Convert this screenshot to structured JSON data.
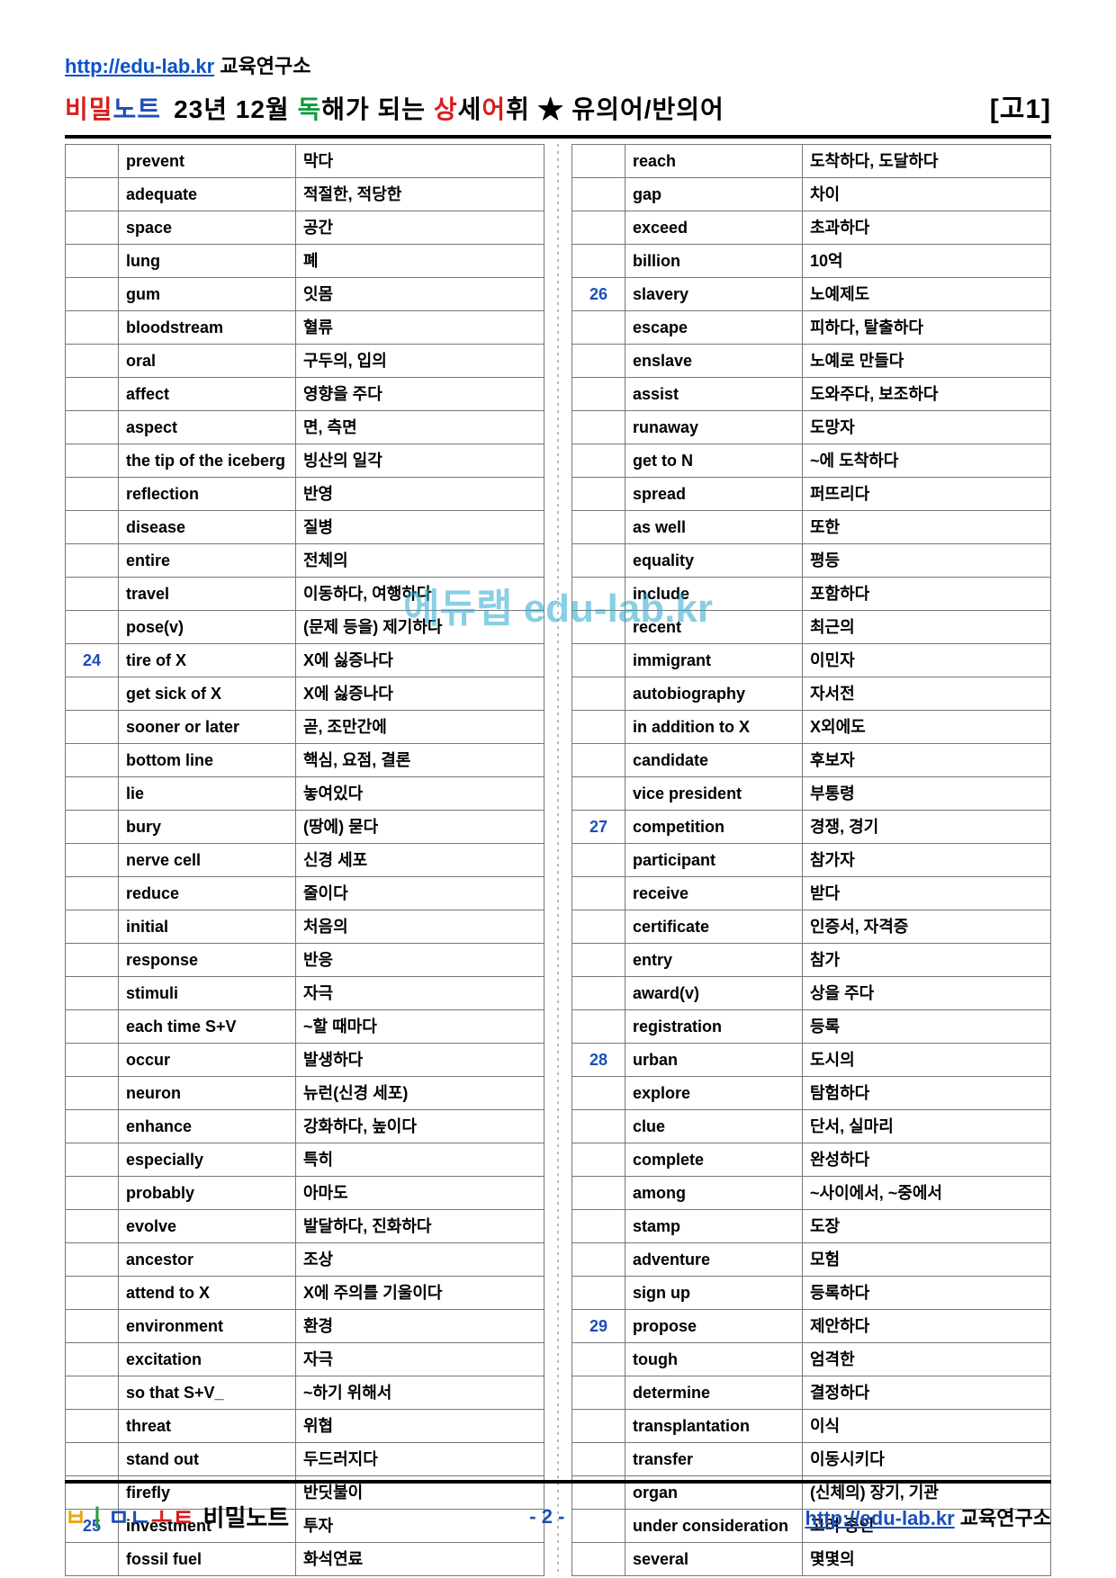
{
  "header": {
    "url": "http://edu-lab.kr",
    "lab": " 교육연구소",
    "logo_chars": [
      "비",
      "밀",
      "노",
      "트"
    ],
    "logo_colors": [
      "#d81e1e",
      "#d81e1e",
      "#1b4eb8",
      "#1b4eb8"
    ],
    "title_parts": [
      {
        "t": "23년  12월 ",
        "c": "#000"
      },
      {
        "t": "독",
        "c": "#0f9b3a"
      },
      {
        "t": "해가  되는  ",
        "c": "#000"
      },
      {
        "t": "상",
        "c": "#d81e1e"
      },
      {
        "t": "세",
        "c": "#000"
      },
      {
        "t": "어",
        "c": "#d81e1e"
      },
      {
        "t": "휘 ★ 유의어/반의어",
        "c": "#000"
      }
    ],
    "grade": "[고1]"
  },
  "watermark": "에듀랩 edu-lab.kr",
  "left": [
    {
      "n": "",
      "en": "prevent",
      "kr": "막다"
    },
    {
      "n": "",
      "en": "adequate",
      "kr": "적절한, 적당한"
    },
    {
      "n": "",
      "en": "space",
      "kr": "공간"
    },
    {
      "n": "",
      "en": "lung",
      "kr": "폐"
    },
    {
      "n": "",
      "en": "gum",
      "kr": "잇몸"
    },
    {
      "n": "",
      "en": "bloodstream",
      "kr": "혈류"
    },
    {
      "n": "",
      "en": "oral",
      "kr": "구두의, 입의"
    },
    {
      "n": "",
      "en": "affect",
      "kr": "영향을 주다"
    },
    {
      "n": "",
      "en": "aspect",
      "kr": "면, 측면"
    },
    {
      "n": "",
      "en": "the tip of the iceberg",
      "kr": "빙산의 일각"
    },
    {
      "n": "",
      "en": "reflection",
      "kr": "반영"
    },
    {
      "n": "",
      "en": "disease",
      "kr": "질병"
    },
    {
      "n": "",
      "en": "entire",
      "kr": "전체의"
    },
    {
      "n": "",
      "en": "travel",
      "kr": "이동하다, 여행하다"
    },
    {
      "n": "",
      "en": "pose(v)",
      "kr": "(문제 등을) 제기하다"
    },
    {
      "n": "24",
      "en": "tire of X",
      "kr": "X에 싫증나다"
    },
    {
      "n": "",
      "en": "get sick of X",
      "kr": "X에 싫증나다"
    },
    {
      "n": "",
      "en": "sooner or later",
      "kr": "곧, 조만간에"
    },
    {
      "n": "",
      "en": "bottom line",
      "kr": "핵심, 요점, 결론"
    },
    {
      "n": "",
      "en": "lie",
      "kr": "놓여있다"
    },
    {
      "n": "",
      "en": "bury",
      "kr": "(땅에) 묻다"
    },
    {
      "n": "",
      "en": "nerve cell",
      "kr": "신경 세포"
    },
    {
      "n": "",
      "en": "reduce",
      "kr": "줄이다"
    },
    {
      "n": "",
      "en": "initial",
      "kr": "처음의"
    },
    {
      "n": "",
      "en": "response",
      "kr": "반응"
    },
    {
      "n": "",
      "en": "stimuli",
      "kr": "자극"
    },
    {
      "n": "",
      "en": "each time S+V",
      "kr": "~할 때마다"
    },
    {
      "n": "",
      "en": "occur",
      "kr": "발생하다"
    },
    {
      "n": "",
      "en": "neuron",
      "kr": "뉴런(신경 세포)"
    },
    {
      "n": "",
      "en": "enhance",
      "kr": "강화하다, 높이다"
    },
    {
      "n": "",
      "en": "especially",
      "kr": "특히"
    },
    {
      "n": "",
      "en": "probably",
      "kr": "아마도"
    },
    {
      "n": "",
      "en": "evolve",
      "kr": "발달하다, 진화하다"
    },
    {
      "n": "",
      "en": "ancestor",
      "kr": "조상"
    },
    {
      "n": "",
      "en": "attend to X",
      "kr": "X에 주의를 기울이다"
    },
    {
      "n": "",
      "en": "environment",
      "kr": "환경"
    },
    {
      "n": "",
      "en": "excitation",
      "kr": "자극"
    },
    {
      "n": "",
      "en": "so that S+V_",
      "kr": "~하기 위해서"
    },
    {
      "n": "",
      "en": "threat",
      "kr": "위협"
    },
    {
      "n": "",
      "en": "stand out",
      "kr": "두드러지다"
    },
    {
      "n": "",
      "en": "firefly",
      "kr": "반딧불이"
    },
    {
      "n": "25",
      "en": "investment",
      "kr": "투자"
    },
    {
      "n": "",
      "en": "fossil fuel",
      "kr": "화석연료"
    }
  ],
  "right": [
    {
      "n": "",
      "en": "reach",
      "kr": "도착하다, 도달하다"
    },
    {
      "n": "",
      "en": "gap",
      "kr": "차이"
    },
    {
      "n": "",
      "en": "exceed",
      "kr": "초과하다"
    },
    {
      "n": "",
      "en": "billion",
      "kr": "10억"
    },
    {
      "n": "26",
      "en": "slavery",
      "kr": "노예제도"
    },
    {
      "n": "",
      "en": "escape",
      "kr": "피하다, 탈출하다"
    },
    {
      "n": "",
      "en": "enslave",
      "kr": "노예로 만들다"
    },
    {
      "n": "",
      "en": "assist",
      "kr": "도와주다, 보조하다"
    },
    {
      "n": "",
      "en": "runaway",
      "kr": "도망자"
    },
    {
      "n": "",
      "en": "get to N",
      "kr": "~에 도착하다"
    },
    {
      "n": "",
      "en": "spread",
      "kr": "퍼뜨리다"
    },
    {
      "n": "",
      "en": "as well",
      "kr": "또한"
    },
    {
      "n": "",
      "en": "equality",
      "kr": "평등"
    },
    {
      "n": "",
      "en": "include",
      "kr": "포함하다"
    },
    {
      "n": "",
      "en": "recent",
      "kr": "최근의"
    },
    {
      "n": "",
      "en": "immigrant",
      "kr": "이민자"
    },
    {
      "n": "",
      "en": "autobiography",
      "kr": "자서전"
    },
    {
      "n": "",
      "en": "in addition to X",
      "kr": "X외에도"
    },
    {
      "n": "",
      "en": "candidate",
      "kr": "후보자"
    },
    {
      "n": "",
      "en": "vice president",
      "kr": "부통령"
    },
    {
      "n": "27",
      "en": "competition",
      "kr": "경쟁, 경기"
    },
    {
      "n": "",
      "en": "participant",
      "kr": "참가자"
    },
    {
      "n": "",
      "en": "receive",
      "kr": "받다"
    },
    {
      "n": "",
      "en": "certificate",
      "kr": "인증서, 자격증"
    },
    {
      "n": "",
      "en": "entry",
      "kr": "참가"
    },
    {
      "n": "",
      "en": "award(v)",
      "kr": "상을 주다"
    },
    {
      "n": "",
      "en": "registration",
      "kr": "등록"
    },
    {
      "n": "28",
      "en": "urban",
      "kr": "도시의"
    },
    {
      "n": "",
      "en": "explore",
      "kr": "탐험하다"
    },
    {
      "n": "",
      "en": "clue",
      "kr": "단서, 실마리"
    },
    {
      "n": "",
      "en": "complete",
      "kr": "완성하다"
    },
    {
      "n": "",
      "en": "among",
      "kr": "~사이에서, ~중에서"
    },
    {
      "n": "",
      "en": "stamp",
      "kr": "도장"
    },
    {
      "n": "",
      "en": "adventure",
      "kr": "모험"
    },
    {
      "n": "",
      "en": "sign up",
      "kr": "등록하다"
    },
    {
      "n": "29",
      "en": "propose",
      "kr": "제안하다"
    },
    {
      "n": "",
      "en": "tough",
      "kr": "엄격한"
    },
    {
      "n": "",
      "en": "determine",
      "kr": "결정하다"
    },
    {
      "n": "",
      "en": "transplantation",
      "kr": "이식"
    },
    {
      "n": "",
      "en": "transfer",
      "kr": "이동시키다"
    },
    {
      "n": "",
      "en": "organ",
      "kr": "(신체의) 장기, 기관"
    },
    {
      "n": "",
      "en": "under consideration",
      "kr": "고려 중인"
    },
    {
      "n": "",
      "en": "several",
      "kr": "몇몇의"
    }
  ],
  "footer": {
    "logo_chars": [
      "ㅂ",
      "ㅣ",
      "ㅁ",
      "ㄴ",
      "ㅗ",
      "ㅌ"
    ],
    "logo_colors": [
      "#e8a80f",
      "#2e9b3a",
      "#1b4eb8",
      "#1b4eb8",
      "#d81e1e",
      "#d81e1e"
    ],
    "logo_text": "비밀노트",
    "page": "- 2 -",
    "url": "http://edu-lab.kr",
    "lab": " 교육연구소"
  }
}
